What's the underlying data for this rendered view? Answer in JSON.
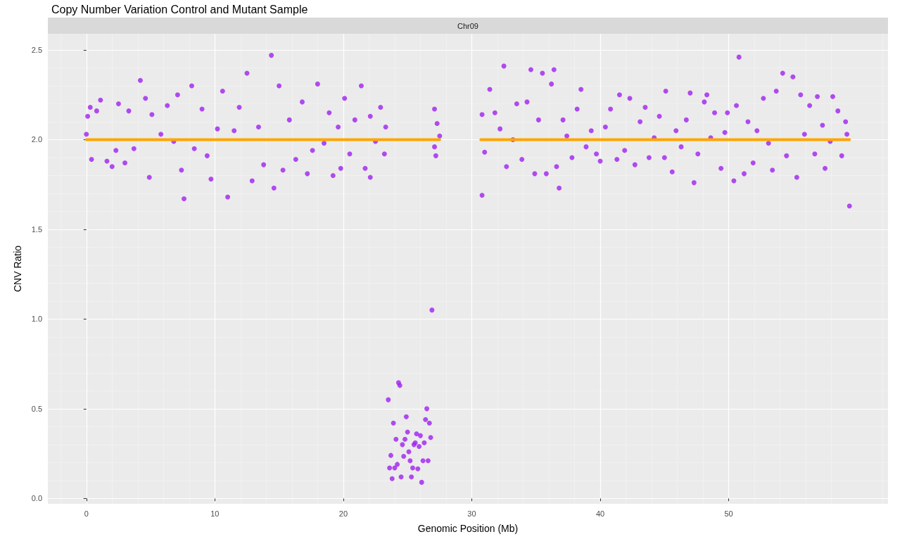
{
  "chart_data": {
    "type": "scatter",
    "title": "Copy Number Variation Control and Mutant Sample",
    "subtitle": "Chr09",
    "xlabel": "Genomic Position (Mb)",
    "ylabel": "CNV Ratio",
    "xlim": [
      -3,
      62.4
    ],
    "ylim": [
      -0.03,
      2.59
    ],
    "xticks": [
      0,
      10,
      20,
      30,
      40,
      50
    ],
    "yticks": [
      {
        "value": 0,
        "label": "0.0"
      },
      {
        "value": 0.5,
        "label": "0.5"
      },
      {
        "value": 1,
        "label": "1.0"
      },
      {
        "value": 1.5,
        "label": "1.5"
      },
      {
        "value": 2,
        "label": "2.0"
      },
      {
        "value": 2.5,
        "label": "2.5"
      }
    ],
    "grid": true,
    "series": [
      {
        "marker": "circle",
        "color": "#a020f0",
        "x": [
          0,
          0.1,
          0.3,
          0.4,
          0.8,
          1.1,
          1.6,
          2.0,
          2.3,
          2.5,
          3.0,
          3.3,
          3.7,
          4.2,
          4.6,
          4.9,
          5.1,
          5.8,
          6.3,
          6.8,
          7.1,
          7.4,
          7.6,
          8.2,
          8.4,
          9.0,
          9.4,
          9.7,
          10.2,
          10.6,
          11.0,
          11.5,
          11.9,
          12.5,
          12.9,
          13.4,
          13.8,
          14.4,
          14.6,
          15.0,
          15.3,
          15.8,
          16.3,
          16.8,
          17.2,
          17.6,
          18.0,
          18.5,
          18.9,
          19.2,
          19.6,
          19.8,
          20.1,
          20.5,
          20.9,
          21.4,
          21.7,
          22.1,
          22.1,
          22.5,
          22.9,
          23.2,
          23.3,
          23.5,
          23.6,
          23.7,
          23.8,
          23.9,
          24.0,
          24.1,
          24.2,
          24.3,
          24.4,
          24.5,
          24.6,
          24.7,
          24.8,
          24.9,
          25.0,
          25.1,
          25.2,
          25.3,
          25.4,
          25.5,
          25.6,
          25.7,
          25.8,
          25.9,
          26.0,
          26.1,
          26.2,
          26.3,
          26.4,
          26.5,
          26.6,
          26.7,
          26.8,
          26.9,
          27.1,
          27.1,
          27.2,
          27.3,
          27.5,
          30.8,
          30.8,
          31.0,
          31.4,
          31.8,
          32.2,
          32.5,
          32.7,
          33.2,
          33.5,
          33.9,
          34.3,
          34.6,
          34.9,
          35.2,
          35.5,
          35.8,
          36.2,
          36.4,
          36.6,
          36.8,
          37.1,
          37.4,
          37.8,
          38.2,
          38.5,
          38.9,
          39.3,
          39.7,
          40.0,
          40.4,
          40.8,
          41.3,
          41.5,
          41.9,
          42.3,
          42.7,
          43.1,
          43.5,
          43.8,
          44.2,
          44.6,
          45.0,
          45.1,
          45.6,
          45.9,
          46.3,
          46.7,
          47.0,
          47.3,
          47.6,
          48.1,
          48.3,
          48.6,
          48.9,
          49.4,
          49.7,
          49.9,
          50.4,
          50.6,
          50.8,
          51.2,
          51.5,
          51.9,
          52.2,
          52.7,
          53.1,
          53.4,
          53.7,
          54.2,
          54.5,
          55.0,
          55.3,
          55.6,
          55.9,
          56.3,
          56.7,
          56.9,
          57.3,
          57.5,
          57.9,
          58.1,
          58.5,
          58.8,
          59.1,
          59.2,
          59.4
        ],
        "values": [
          2.03,
          2.13,
          2.18,
          1.89,
          2.16,
          2.22,
          1.88,
          1.85,
          1.94,
          2.2,
          1.87,
          2.16,
          1.95,
          2.33,
          2.23,
          1.79,
          2.14,
          2.03,
          2.19,
          1.99,
          2.25,
          1.83,
          1.67,
          2.3,
          1.95,
          2.17,
          1.91,
          1.78,
          2.06,
          2.27,
          1.68,
          2.05,
          2.18,
          2.37,
          1.77,
          2.07,
          1.86,
          2.47,
          1.73,
          2.3,
          1.83,
          2.11,
          1.89,
          2.21,
          1.81,
          1.94,
          2.31,
          1.98,
          2.15,
          1.8,
          2.07,
          1.84,
          2.23,
          1.92,
          2.11,
          2.3,
          1.84,
          2.13,
          1.79,
          1.99,
          2.18,
          1.92,
          2.07,
          0.55,
          0.17,
          0.24,
          0.11,
          0.42,
          0.17,
          0.33,
          0.19,
          0.645,
          0.63,
          0.12,
          0.3,
          0.235,
          0.33,
          0.455,
          0.37,
          0.26,
          0.21,
          0.12,
          0.17,
          0.3,
          0.31,
          0.36,
          0.165,
          0.29,
          0.35,
          0.09,
          0.21,
          0.31,
          0.44,
          0.5,
          0.21,
          0.42,
          0.34,
          1.05,
          2.17,
          1.96,
          1.91,
          2.09,
          2.02,
          2.14,
          1.69,
          1.93,
          2.28,
          2.15,
          2.06,
          2.41,
          1.85,
          2.0,
          2.2,
          1.89,
          2.21,
          2.39,
          1.81,
          2.11,
          2.37,
          1.81,
          2.31,
          2.39,
          1.85,
          1.73,
          2.11,
          2.02,
          1.9,
          2.17,
          2.28,
          1.96,
          2.05,
          1.92,
          1.88,
          2.07,
          2.17,
          1.89,
          2.25,
          1.94,
          2.23,
          1.86,
          2.1,
          2.18,
          1.9,
          2.01,
          2.13,
          1.9,
          2.27,
          1.82,
          2.05,
          1.96,
          2.11,
          2.26,
          1.76,
          1.92,
          2.21,
          2.25,
          2.01,
          2.15,
          1.84,
          2.04,
          2.15,
          1.77,
          2.19,
          2.46,
          1.81,
          2.1,
          1.87,
          2.05,
          2.23,
          1.98,
          1.83,
          2.27,
          2.37,
          1.91,
          2.35,
          1.79,
          2.25,
          2.03,
          2.19,
          1.92,
          2.24,
          2.08,
          1.84,
          1.99,
          2.24,
          2.16,
          1.91,
          2.1,
          2.03,
          1.63
        ]
      },
      {
        "type": "line",
        "marker": "none",
        "color": "#ffa500",
        "x": [
          0,
          27.5
        ],
        "values": [
          2,
          2
        ]
      },
      {
        "type": "line",
        "marker": "none",
        "color": "#ffa500",
        "x": [
          30.7,
          59.4
        ],
        "values": [
          2,
          2
        ]
      }
    ]
  }
}
